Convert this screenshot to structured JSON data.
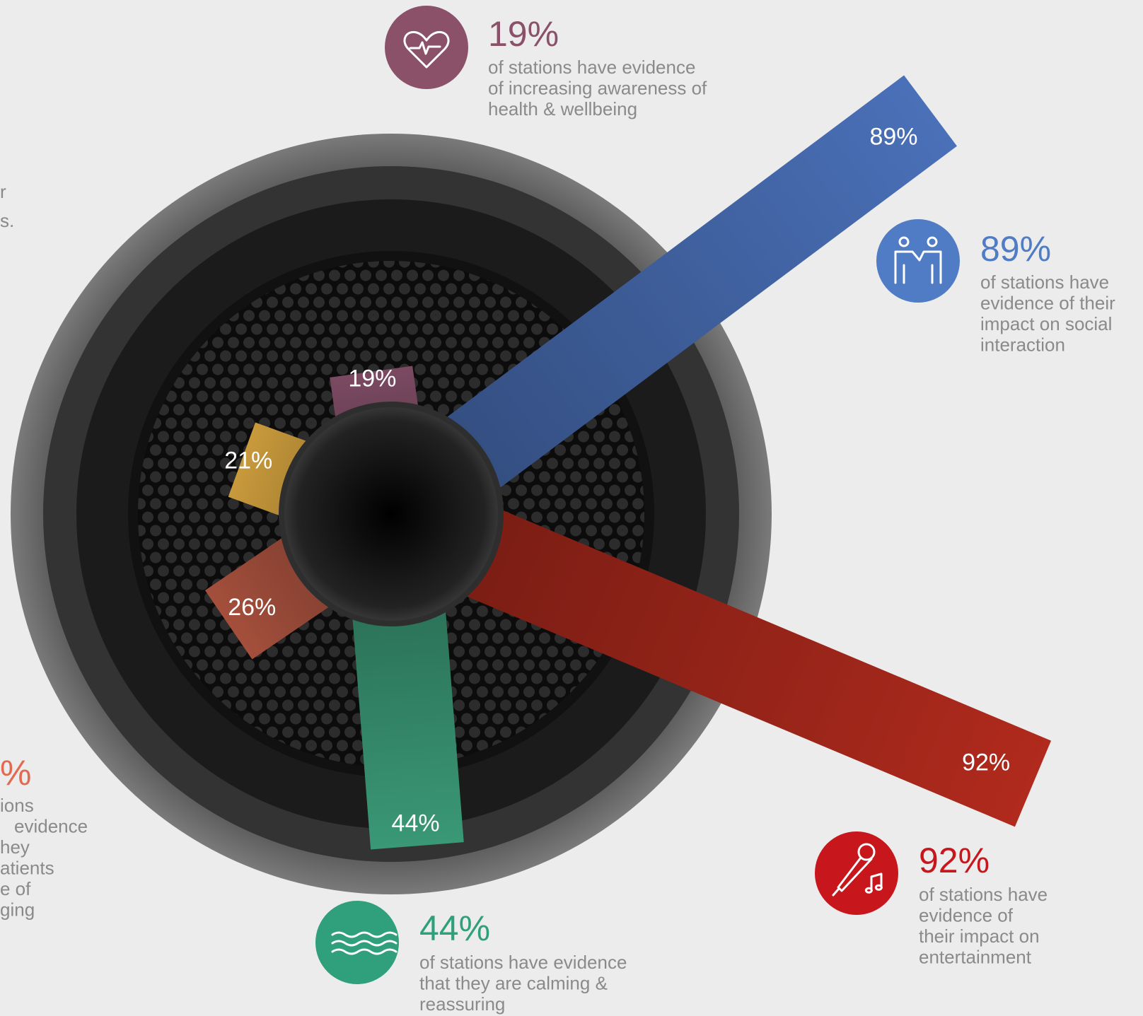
{
  "chart_data": {
    "type": "radial-bar",
    "values": [
      19,
      89,
      92,
      44,
      26,
      21
    ],
    "value_labels": [
      "19%",
      "89%",
      "92%",
      "44%",
      "26%",
      "21%"
    ],
    "colors": [
      "#7b4a62",
      "#4a70b8",
      "#b02a1d",
      "#3a9876",
      "#a44f3c",
      "#c99a3c"
    ],
    "callouts": [
      {
        "color": "#8a5169",
        "lines": [
          "of stations have evidence",
          "of increasing awareness of",
          "health & wellbeing"
        ]
      },
      {
        "color": "#4f7cc4",
        "lines": [
          "of stations have",
          "evidence of their",
          "impact on social",
          "interaction"
        ]
      },
      {
        "color": "#c8161d",
        "lines": [
          "of stations have",
          "evidence of",
          "their impact on",
          "entertainment"
        ]
      },
      {
        "color": "#2f9f7c",
        "lines": [
          "of stations have evidence",
          "that they are calming &",
          "reassuring"
        ]
      },
      {
        "color": "#e26a50",
        "number_fragment": "%",
        "lines": [
          "ions",
          "evidence",
          "hey",
          "atients",
          "e of",
          "ging"
        ]
      },
      {
        "color": "#c99a3c",
        "lines": [
          "r",
          "s."
        ]
      }
    ]
  }
}
